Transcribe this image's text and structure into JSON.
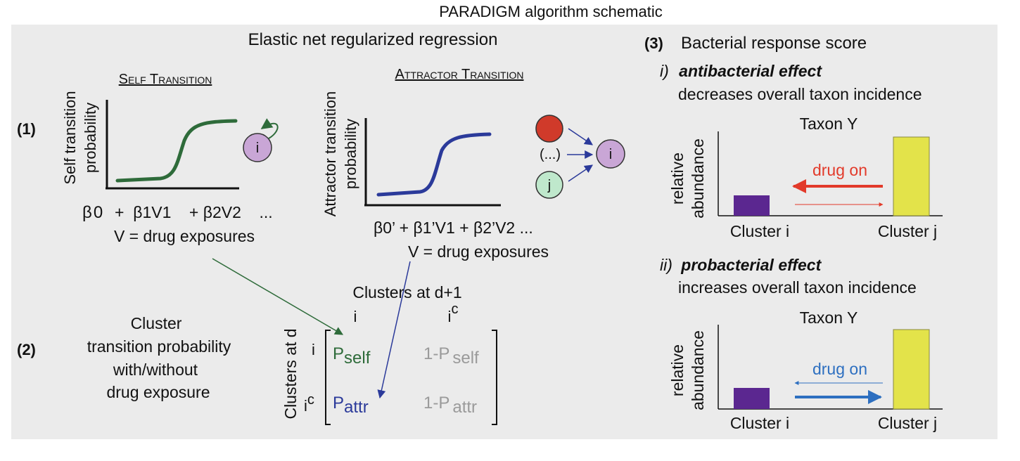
{
  "title": "PARADIGM algorithm schematic",
  "colors": {
    "panel_bg": "#ebebeb",
    "self_green": "#2e6b3a",
    "attr_blue": "#2b3a9a",
    "node_purple": "#c9a6d6",
    "node_red": "#d03a2a",
    "node_green": "#bfe8cc",
    "bar_purple": "#5b2790",
    "bar_yellow": "#e3e34a",
    "arrow_red": "#e23a2a",
    "arrow_blue": "#2d6fc0",
    "gray_text": "#9a9a9a"
  },
  "left": {
    "heading": "Elastic net regularized regression",
    "step1": "(1)",
    "step2": "(2)",
    "self": {
      "title": "Self Transition",
      "ylabel_line1": "Self transition",
      "ylabel_line2": "probability",
      "node": "i",
      "eq_b0": "β",
      "eq_b0_sub": "0",
      "eq_rest": "+  β1V1    + β2V2    ...",
      "footnote": "V = drug exposures"
    },
    "attractor": {
      "title": "Attractor Transition",
      "ylabel_line1": "Attractor transition",
      "ylabel_line2": "probability",
      "node_ellipsis": "(...)",
      "node_target": "i",
      "node_j": "j",
      "eq_text": "β0’ + β1’V1 + β2’V2 ...",
      "footnote": "V = drug exposures"
    },
    "cluster_label": {
      "line1": "Cluster",
      "line2": "transition probability",
      "line3": "with/without",
      "line4": "drug exposure"
    },
    "matrix": {
      "col_title": "Clusters at d+1",
      "row_title": "Clusters at d",
      "col_i": "i",
      "col_ic_base": "i",
      "col_ic_sup": "c",
      "row_i": "i",
      "row_ic_base": "i",
      "row_ic_sup": "c",
      "p_self_base": "P",
      "p_self_sub": "self",
      "one_minus_p_self_base": "1-P",
      "one_minus_p_self_sub": "self",
      "p_attr_base": "P",
      "p_attr_sub": "attr",
      "one_minus_p_attr_base": "1-P",
      "one_minus_p_attr_sub": "attr"
    }
  },
  "right": {
    "step": "(3)",
    "heading": "Bacterial response score",
    "panel_i": {
      "numeral": "i)",
      "effect": "antibacterial effect",
      "description": "decreases overall taxon incidence",
      "chart_title": "Taxon Y",
      "ylabel_line1": "relative",
      "ylabel_line2": "abundance",
      "arrow_label": "drug on",
      "x_left": "Cluster i",
      "x_right": "Cluster j"
    },
    "panel_ii": {
      "numeral": "ii)",
      "effect": "probacterial effect",
      "description": "increases overall taxon incidence",
      "chart_title": "Taxon Y",
      "ylabel_line1": "relative",
      "ylabel_line2": "abundance",
      "arrow_label": "drug on",
      "x_left": "Cluster i",
      "x_right": "Cluster j"
    }
  }
}
